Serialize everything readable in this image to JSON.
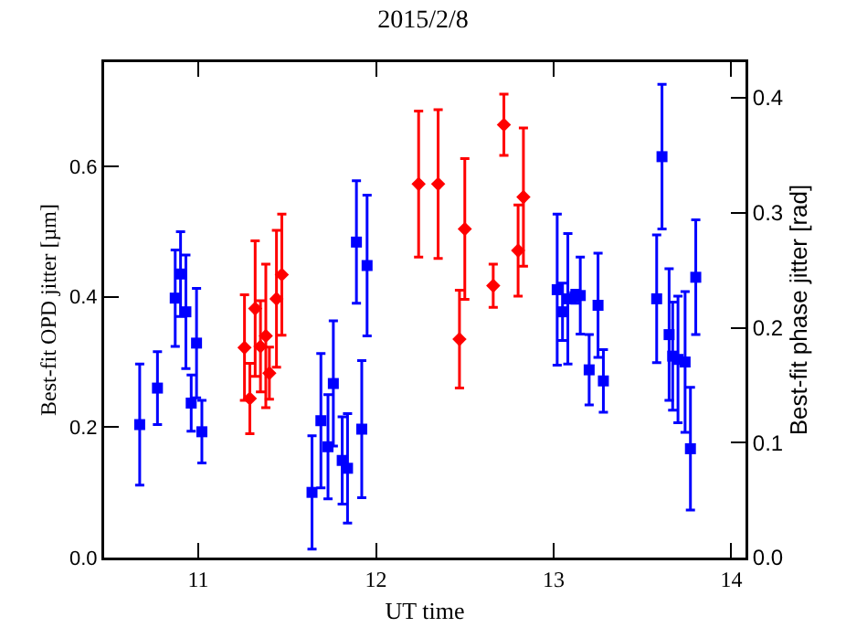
{
  "chart_data": {
    "type": "scatter",
    "title": "2015/2/8",
    "xlabel": "UT time",
    "ylabel": "Best-fit OPD jitter [µm]",
    "y2label": "Best-fit phase jitter [rad]",
    "xlim": [
      10.47,
      14.08
    ],
    "xticks": [
      11,
      12,
      13,
      14
    ],
    "ylim": [
      0,
      0.76
    ],
    "yticks": [
      {
        "value": 0,
        "label": "0.0"
      },
      0.2,
      0.4,
      0.6
    ],
    "y2lim": [
      0,
      0.431
    ],
    "y2ticks": [
      {
        "value": 0,
        "label": "0.0"
      },
      0.1,
      0.2,
      0.3,
      0.4
    ],
    "series": [
      {
        "color": "#0000ff",
        "marker": "square",
        "x": [
          10.67,
          10.77,
          10.87,
          10.9,
          10.93,
          10.96,
          10.99,
          11.02
        ],
        "values": [
          0.204,
          0.26,
          0.398,
          0.435,
          0.377,
          0.237,
          0.329,
          0.193
        ],
        "errors": [
          0.093,
          0.056,
          0.074,
          0.065,
          0.087,
          0.043,
          0.084,
          0.048
        ]
      },
      {
        "color": "#ff0000",
        "marker": "diamond",
        "x": [
          11.26,
          11.29,
          11.32,
          11.35,
          11.38,
          11.4,
          11.44,
          11.47
        ],
        "values": [
          0.322,
          0.244,
          0.382,
          0.324,
          0.34,
          0.283,
          0.397,
          0.434
        ],
        "errors": [
          0.081,
          0.054,
          0.104,
          0.07,
          0.11,
          0.04,
          0.105,
          0.093
        ]
      },
      {
        "color": "#0000ff",
        "marker": "square",
        "x": [
          11.64,
          11.69,
          11.73,
          11.76,
          11.81,
          11.84,
          11.89,
          11.92,
          11.95
        ],
        "values": [
          0.1,
          0.21,
          0.17,
          0.267,
          0.149,
          0.137,
          0.484,
          0.197,
          0.448
        ],
        "errors": [
          0.087,
          0.103,
          0.08,
          0.096,
          0.067,
          0.084,
          0.094,
          0.105,
          0.108
        ]
      },
      {
        "color": "#ff0000",
        "marker": "diamond",
        "x": [
          12.24,
          12.35,
          12.47,
          12.5,
          12.66,
          12.72,
          12.8,
          12.83
        ],
        "values": [
          0.573,
          0.573,
          0.335,
          0.504,
          0.417,
          0.664,
          0.471,
          0.553
        ],
        "errors": [
          0.112,
          0.114,
          0.075,
          0.108,
          0.033,
          0.047,
          0.07,
          0.106
        ]
      },
      {
        "color": "#0000ff",
        "marker": "square",
        "x": [
          13.02,
          13.05,
          13.08,
          13.12,
          13.15,
          13.2,
          13.25,
          13.28,
          13.58,
          13.61,
          13.65,
          13.67,
          13.7,
          13.74,
          13.77,
          13.8
        ],
        "values": [
          0.411,
          0.377,
          0.397,
          0.4,
          0.402,
          0.288,
          0.387,
          0.271,
          0.397,
          0.615,
          0.342,
          0.309,
          0.304,
          0.3,
          0.167,
          0.43
        ],
        "errors": [
          0.116,
          0.044,
          0.1,
          0.01,
          0.059,
          0.054,
          0.08,
          0.048,
          0.098,
          0.111,
          0.101,
          0.083,
          0.097,
          0.108,
          0.094,
          0.088
        ]
      }
    ]
  }
}
